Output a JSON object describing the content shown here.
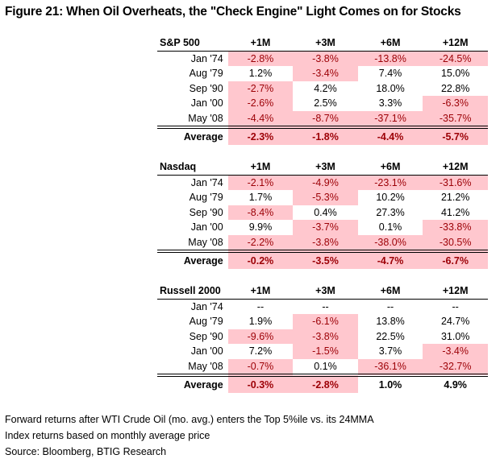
{
  "title": "Figure 21: When Oil Overheats, the \"Check Engine\" Light Comes on for Stocks",
  "chart_data": {
    "type": "table",
    "title": "Figure 21: When Oil Overheats, the \"Check Engine\" Light Comes on for Stocks",
    "columns": [
      "+1M",
      "+3M",
      "+6M",
      "+12M"
    ],
    "highlight_rule": "negative values shaded light red",
    "colors": {
      "negative_fill": "#ffc7ce",
      "negative_text": "#9c0006"
    },
    "tables": [
      {
        "name": "S&P 500",
        "rows": [
          {
            "label": "Jan '74",
            "values": [
              "-2.8%",
              "-3.8%",
              "-13.8%",
              "-24.5%"
            ]
          },
          {
            "label": "Aug '79",
            "values": [
              "1.2%",
              "-3.4%",
              "7.4%",
              "15.0%"
            ]
          },
          {
            "label": "Sep '90",
            "values": [
              "-2.7%",
              "4.2%",
              "18.0%",
              "22.8%"
            ]
          },
          {
            "label": "Jan '00",
            "values": [
              "-2.6%",
              "2.5%",
              "3.3%",
              "-6.3%"
            ]
          },
          {
            "label": "May '08",
            "values": [
              "-4.4%",
              "-8.7%",
              "-37.1%",
              "-35.7%"
            ]
          }
        ],
        "average": {
          "label": "Average",
          "values": [
            "-2.3%",
            "-1.8%",
            "-4.4%",
            "-5.7%"
          ]
        }
      },
      {
        "name": "Nasdaq",
        "rows": [
          {
            "label": "Jan '74",
            "values": [
              "-2.1%",
              "-4.9%",
              "-23.1%",
              "-31.6%"
            ]
          },
          {
            "label": "Aug '79",
            "values": [
              "1.7%",
              "-5.3%",
              "10.2%",
              "21.2%"
            ]
          },
          {
            "label": "Sep '90",
            "values": [
              "-8.4%",
              "0.4%",
              "27.3%",
              "41.2%"
            ]
          },
          {
            "label": "Jan '00",
            "values": [
              "9.9%",
              "-3.7%",
              "0.1%",
              "-33.8%"
            ]
          },
          {
            "label": "May '08",
            "values": [
              "-2.2%",
              "-3.8%",
              "-38.0%",
              "-30.5%"
            ]
          }
        ],
        "average": {
          "label": "Average",
          "values": [
            "-0.2%",
            "-3.5%",
            "-4.7%",
            "-6.7%"
          ]
        }
      },
      {
        "name": "Russell 2000",
        "rows": [
          {
            "label": "Jan '74",
            "values": [
              "--",
              "--",
              "--",
              "--"
            ]
          },
          {
            "label": "Aug '79",
            "values": [
              "1.9%",
              "-6.1%",
              "13.8%",
              "24.7%"
            ]
          },
          {
            "label": "Sep '90",
            "values": [
              "-9.6%",
              "-3.8%",
              "22.5%",
              "31.0%"
            ]
          },
          {
            "label": "Jan '00",
            "values": [
              "7.2%",
              "-1.5%",
              "3.7%",
              "-3.4%"
            ]
          },
          {
            "label": "May '08",
            "values": [
              "-0.7%",
              "0.1%",
              "-36.1%",
              "-32.7%"
            ]
          }
        ],
        "average": {
          "label": "Average",
          "values": [
            "-0.3%",
            "-2.8%",
            "1.0%",
            "4.9%"
          ]
        }
      }
    ]
  },
  "notes": [
    "Forward returns after WTI Crude Oil (mo. avg.) enters the Top 5%ile vs. its 24MMA",
    "Index returns based on monthly average price",
    "Source: Bloomberg, BTIG Research"
  ]
}
